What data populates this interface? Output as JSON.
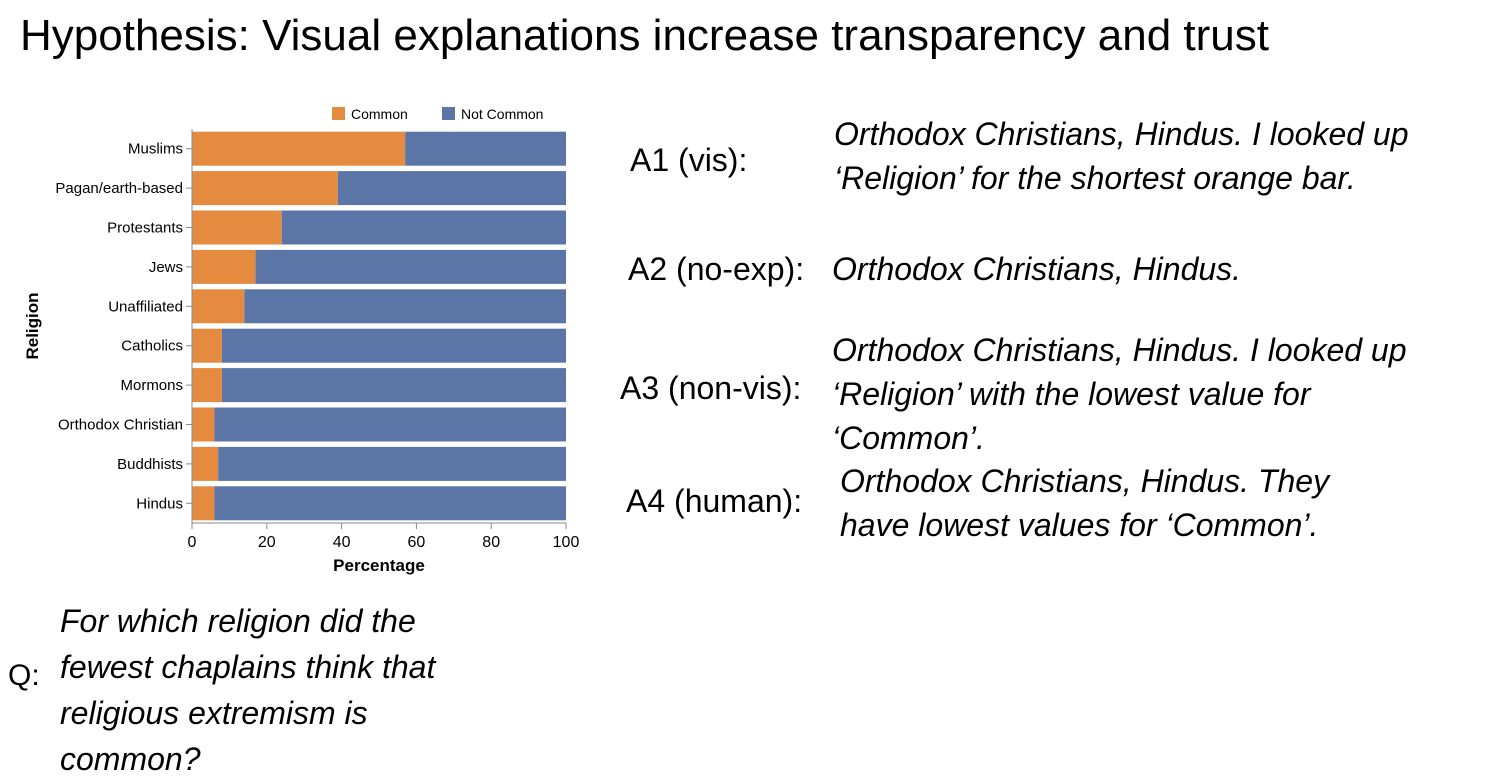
{
  "slide": {
    "title": "Hypothesis: Visual explanations increase transparency and trust"
  },
  "answers": [
    {
      "label": "A1 (vis):",
      "lines": [
        "Orthodox Christians, Hindus. I looked up",
        "‘Religion’ for the shortest orange bar."
      ]
    },
    {
      "label": "A2 (no-exp):",
      "lines": [
        "Orthodox Christians, Hindus."
      ]
    },
    {
      "label": "A3 (non-vis):",
      "lines": [
        "Orthodox Christians, Hindus. I looked up",
        "‘Religion’ with the lowest value for",
        "‘Common’."
      ]
    },
    {
      "label": "A4 (human):",
      "lines": [
        "Orthodox Christians, Hindus. They",
        "have lowest values for ‘Common’."
      ]
    }
  ],
  "question": {
    "label": "Q:",
    "lines": [
      "For which religion did the",
      "fewest chaplains think that",
      "religious extremism is",
      "common?"
    ]
  },
  "chart_data": {
    "type": "bar",
    "orientation": "horizontal",
    "stacked": true,
    "categories": [
      "Muslims",
      "Pagan/earth-based",
      "Protestants",
      "Jews",
      "Unaffiliated",
      "Catholics",
      "Mormons",
      "Orthodox Christian",
      "Buddhists",
      "Hindus"
    ],
    "series": [
      {
        "name": "Common",
        "color": "#e58b3f",
        "values": [
          57,
          39,
          24,
          17,
          14,
          8,
          8,
          6,
          7,
          6
        ]
      },
      {
        "name": "Not Common",
        "color": "#5b76a6",
        "values": [
          43,
          61,
          76,
          83,
          86,
          92,
          92,
          94,
          93,
          94
        ]
      }
    ],
    "xlabel": "Percentage",
    "ylabel": "Religion",
    "xlim": [
      0,
      100
    ],
    "xticks": [
      0,
      20,
      40,
      60,
      80,
      100
    ],
    "legend": "top-right",
    "grid": false
  }
}
